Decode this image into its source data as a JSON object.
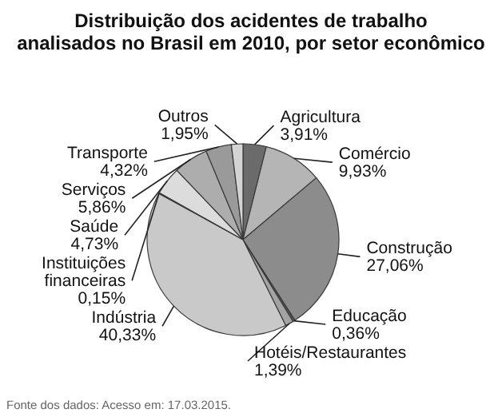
{
  "chart_data": {
    "type": "pie",
    "title": "Distribuição dos acidentes de trabalho analisados no Brasil em 2010, por setor econômico",
    "categories": [
      "Agricultura",
      "Comércio",
      "Construção",
      "Educação",
      "Hotéis/Restaurantes",
      "Indústria",
      "Instituições financeiras",
      "Saúde",
      "Serviços",
      "Transporte",
      "Outros"
    ],
    "values": [
      3.91,
      9.93,
      27.06,
      0.36,
      1.39,
      40.33,
      0.15,
      4.73,
      5.86,
      4.32,
      1.95
    ],
    "value_labels": [
      "3,91%",
      "9,93%",
      "27,06%",
      "0,36%",
      "1,39%",
      "40,33%",
      "0,15%",
      "4,73%",
      "5,86%",
      "4,32%",
      "1,95%"
    ],
    "colors": [
      "#6b6b6b",
      "#b5b5b5",
      "#8c8c8c",
      "#595959",
      "#a3a3a3",
      "#c9c9c9",
      "#4d4d4d",
      "#dcdcdc",
      "#adadad",
      "#9a9a9a",
      "#d4d4d4"
    ],
    "annotations": [
      "Fonte dos dados: Acesso em: 17.03.2015."
    ]
  }
}
